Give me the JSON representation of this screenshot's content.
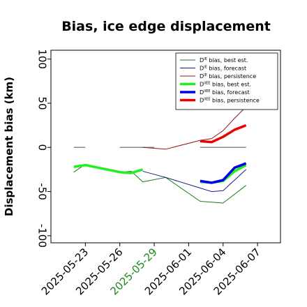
{
  "chart_data": {
    "type": "line",
    "title": "Bias, ice edge displacement",
    "y_label": "Displacement bias (km)",
    "xlim": [
      "2025-05-20",
      "2025-06-09"
    ],
    "xticks": [
      "2025-05-23",
      "2025-05-26",
      "2025-05-29",
      "2025-06-01",
      "2025-06-04",
      "2025-06-07"
    ],
    "highlight_tick": "2025-05-29",
    "highlight_color": "#1a8c1a",
    "ylim": [
      -108,
      110
    ],
    "yticks": [
      -100,
      -50,
      0,
      50,
      100
    ],
    "legend": "upper right",
    "series": [
      {
        "color": "#888888",
        "width": 1.5,
        "x": [
          "2025-05-22",
          "2025-05-23",
          "2025-05-24",
          "2025-05-26",
          "2025-05-29",
          "2025-05-30",
          "2025-06-02",
          "2025-06-06"
        ],
        "values": [
          0,
          0,
          null,
          0,
          0,
          null,
          0,
          0
        ]
      },
      {
        "name_parts": [
          "D",
          "IE",
          " bias, best est."
        ],
        "color": "#1a7a1a",
        "width": 1,
        "x": [
          "2025-05-22",
          "2025-05-23",
          "2025-05-26",
          "2025-05-27",
          "2025-05-28",
          "2025-05-30",
          "2025-06-02",
          "2025-06-04",
          "2025-06-06"
        ],
        "values": [
          -28,
          -19,
          -28,
          -27,
          -39,
          -34,
          -61,
          -63,
          -43
        ]
      },
      {
        "name_parts": [
          "D",
          "IE",
          " bias, forecast"
        ],
        "color": "#1a1a8c",
        "width": 1,
        "x": [
          "2025-05-28",
          "2025-05-30",
          "2025-06-02",
          "2025-06-03",
          "2025-06-04",
          "2025-06-06"
        ],
        "values": [
          -27,
          -34,
          -46,
          -50,
          -49,
          -25
        ]
      },
      {
        "name_parts": [
          "D",
          "IE",
          " bias, persistence"
        ],
        "color": "#8c1a1a",
        "width": 1,
        "x": [
          "2025-05-28",
          "2025-05-30",
          "2025-06-02",
          "2025-06-03",
          "2025-06-04",
          "2025-06-05",
          "2025-06-06"
        ],
        "values": [
          0,
          -2,
          8,
          10,
          19,
          33,
          46
        ]
      },
      {
        "name_parts": [
          "D",
          "IIEE",
          " bias, best est."
        ],
        "color": "#22ee22",
        "width": 3.5,
        "x": [
          "2025-05-22",
          "2025-05-23",
          "2025-05-26",
          "2025-05-27",
          "2025-05-28",
          "2025-05-29",
          "2025-06-02",
          "2025-06-03",
          "2025-06-04",
          "2025-06-05",
          "2025-06-06"
        ],
        "values": [
          -22,
          -20,
          -28,
          -29,
          -25,
          null,
          -39,
          -40,
          -38,
          -27,
          -20
        ]
      },
      {
        "name_parts": [
          "D",
          "IIEE",
          " bias, forecast"
        ],
        "color": "#0000ee",
        "width": 3.5,
        "x": [
          "2025-06-02",
          "2025-06-03",
          "2025-06-04",
          "2025-06-05",
          "2025-06-06"
        ],
        "values": [
          -38,
          -40,
          -37,
          -23,
          -18
        ]
      },
      {
        "name_parts": [
          "D",
          "IIEE",
          " bias, persistence"
        ],
        "color": "#ee0000",
        "width": 3.5,
        "x": [
          "2025-06-02",
          "2025-06-03",
          "2025-06-04",
          "2025-06-05",
          "2025-06-06"
        ],
        "values": [
          7,
          6,
          12,
          20,
          25
        ]
      }
    ]
  }
}
